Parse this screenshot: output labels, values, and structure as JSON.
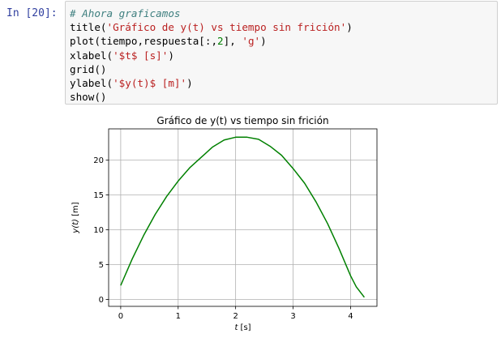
{
  "cell": {
    "prompt": "In [20]:",
    "code_lines": [
      [
        {
          "t": "comment",
          "v": "# Ahora graficamos"
        }
      ],
      [
        {
          "t": "name",
          "v": "title"
        },
        {
          "t": "punct",
          "v": "("
        },
        {
          "t": "string",
          "v": "'Gráfico de y(t) vs tiempo sin frición'"
        },
        {
          "t": "punct",
          "v": ")"
        }
      ],
      [
        {
          "t": "name",
          "v": "plot"
        },
        {
          "t": "punct",
          "v": "("
        },
        {
          "t": "name",
          "v": "tiempo"
        },
        {
          "t": "punct",
          "v": ","
        },
        {
          "t": "name",
          "v": "respuesta"
        },
        {
          "t": "punct",
          "v": "[:,"
        },
        {
          "t": "number",
          "v": "2"
        },
        {
          "t": "punct",
          "v": "], "
        },
        {
          "t": "string",
          "v": "'g'"
        },
        {
          "t": "punct",
          "v": ")"
        }
      ],
      [
        {
          "t": "name",
          "v": "xlabel"
        },
        {
          "t": "punct",
          "v": "("
        },
        {
          "t": "string",
          "v": "'$t$ [s]'"
        },
        {
          "t": "punct",
          "v": ")"
        }
      ],
      [
        {
          "t": "name",
          "v": "grid"
        },
        {
          "t": "punct",
          "v": "()"
        }
      ],
      [
        {
          "t": "name",
          "v": "ylabel"
        },
        {
          "t": "punct",
          "v": "("
        },
        {
          "t": "string",
          "v": "'$y(t)$ [m]'"
        },
        {
          "t": "punct",
          "v": ")"
        }
      ],
      [
        {
          "t": "name",
          "v": "show"
        },
        {
          "t": "punct",
          "v": "()"
        }
      ]
    ]
  },
  "chart_data": {
    "type": "line",
    "title": "Gráfico de y(t) vs tiempo sin frición",
    "xlabel_var": "t",
    "xlabel_unit": " [s]",
    "ylabel_var": "y(t)",
    "ylabel_unit": " [m]",
    "xlim": [
      -0.21,
      4.46
    ],
    "ylim": [
      -1.0,
      24.5
    ],
    "xticks": [
      0,
      1,
      2,
      3,
      4
    ],
    "yticks": [
      0,
      5,
      10,
      15,
      20
    ],
    "grid": true,
    "series": [
      {
        "color": "#008000",
        "x": [
          0.0,
          0.2,
          0.4,
          0.6,
          0.8,
          1.0,
          1.2,
          1.4,
          1.6,
          1.8,
          2.0,
          2.2,
          2.4,
          2.6,
          2.8,
          3.0,
          3.2,
          3.4,
          3.6,
          3.8,
          4.0,
          4.1,
          4.24
        ],
        "y": [
          2.0,
          5.8,
          9.2,
          12.2,
          14.8,
          17.0,
          18.9,
          20.4,
          21.9,
          22.9,
          23.3,
          23.3,
          23.0,
          22.0,
          20.7,
          18.8,
          16.7,
          14.0,
          10.9,
          7.3,
          3.4,
          1.8,
          0.3
        ]
      }
    ]
  }
}
